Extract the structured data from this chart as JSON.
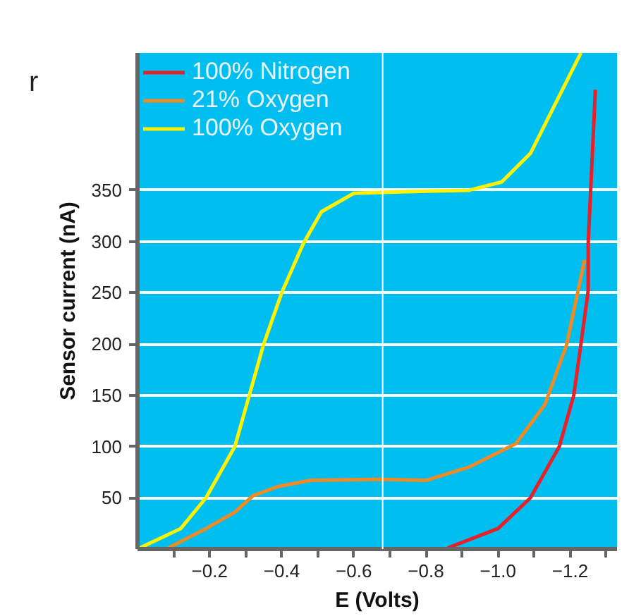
{
  "chart_data": {
    "type": "line",
    "xlabel": "E (Volts)",
    "ylabel": "Sensor current (nA)",
    "annotations": [
      "r"
    ],
    "xlim": [
      0,
      -1.33
    ],
    "ylim": [
      0,
      484
    ],
    "xticks": [
      {
        "value": -0.1,
        "label": null
      },
      {
        "value": -0.2,
        "label": "−0.2"
      },
      {
        "value": -0.3,
        "label": null
      },
      {
        "value": -0.4,
        "label": "−0.4"
      },
      {
        "value": -0.5,
        "label": null
      },
      {
        "value": -0.6,
        "label": "−0.6"
      },
      {
        "value": -0.7,
        "label": null
      },
      {
        "value": -0.8,
        "label": "−0.8"
      },
      {
        "value": -0.9,
        "label": null
      },
      {
        "value": -1.0,
        "label": "−1.0"
      },
      {
        "value": -1.1,
        "label": null
      },
      {
        "value": -1.2,
        "label": "−1.2"
      },
      {
        "value": -1.3,
        "label": null
      }
    ],
    "yticks": [
      50,
      100,
      150,
      200,
      250,
      300,
      350
    ],
    "grid": "y",
    "legend": "top left",
    "marker": "none",
    "line_style": "solid",
    "ref_lines": [
      {
        "axis": "x",
        "value": -0.68,
        "label": null,
        "color": "#ffffff"
      }
    ],
    "series": [
      {
        "name": "100% Nitrogen",
        "color": "#e8202a",
        "x": [
          -0.86,
          -1.0,
          -1.09,
          -1.17,
          -1.21,
          -1.23,
          -1.25,
          -1.25,
          -1.27
        ],
        "values": [
          1,
          20,
          50,
          100,
          150,
          200,
          252,
          298,
          448
        ]
      },
      {
        "name": "21% Oxygen",
        "color": "#f08a24",
        "x": [
          -0.085,
          -0.19,
          -0.27,
          -0.32,
          -0.39,
          -0.48,
          -0.67,
          -0.8,
          -0.92,
          -1.05,
          -1.13,
          -1.19,
          -1.24
        ],
        "values": [
          1,
          20,
          36,
          52,
          61,
          67,
          68,
          67,
          80,
          103,
          141,
          199,
          282
        ]
      },
      {
        "name": "100% Oxygen",
        "color": "#fff200",
        "x": [
          0,
          -0.12,
          -0.19,
          -0.27,
          -0.31,
          -0.35,
          -0.4,
          -0.46,
          -0.51,
          -0.6,
          -0.8,
          -0.92,
          -1.01,
          -1.09,
          -1.15,
          -1.23
        ],
        "values": [
          0,
          20,
          50,
          100,
          150,
          200,
          250,
          298,
          329,
          347,
          349,
          350,
          358,
          386,
          428,
          484
        ]
      }
    ]
  }
}
